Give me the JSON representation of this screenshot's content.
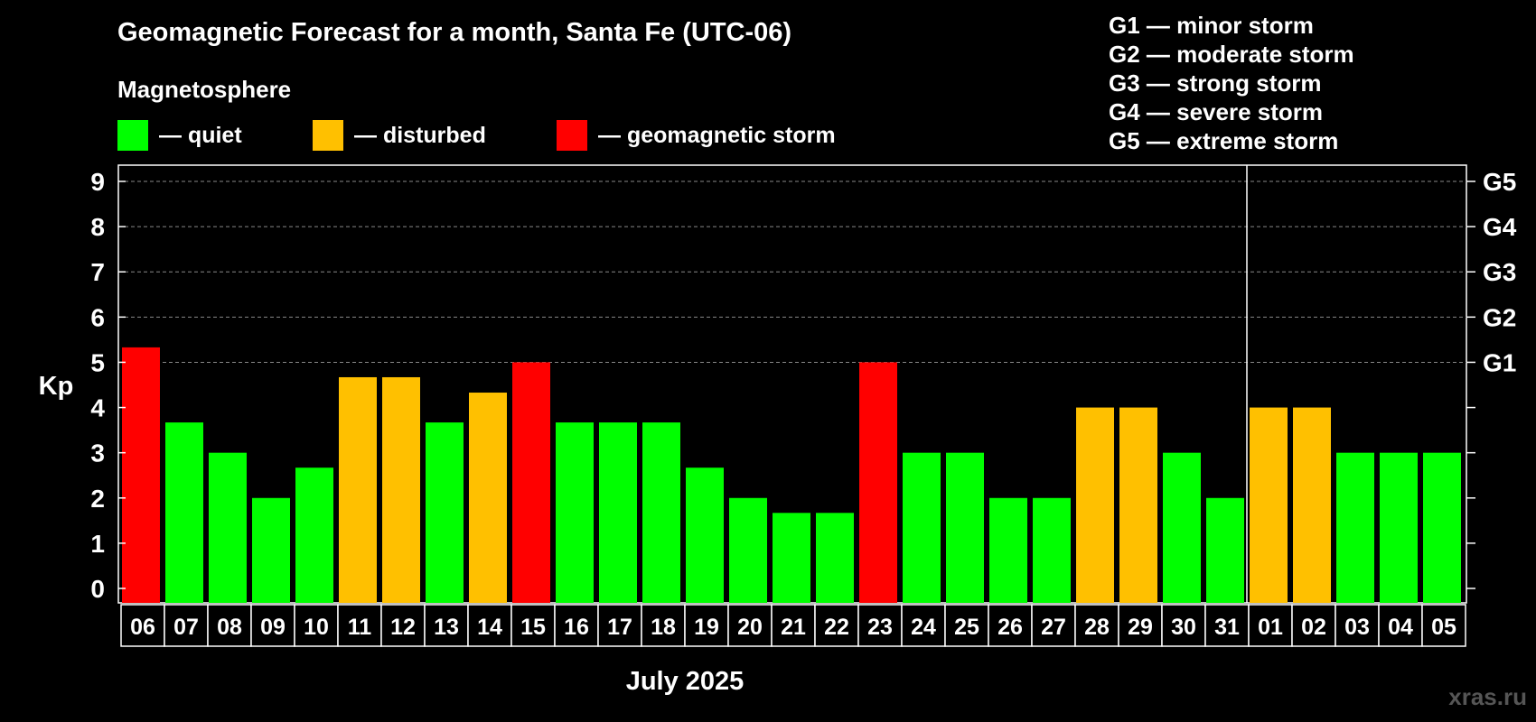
{
  "title": "Geomagnetic Forecast for a month, Santa Fe (UTC-06)",
  "legend": {
    "heading": "Magnetosphere",
    "items": [
      {
        "label": "— quiet",
        "color": "#00ff00"
      },
      {
        "label": "— disturbed",
        "color": "#ffc000"
      },
      {
        "label": "— geomagnetic storm",
        "color": "#ff0000"
      }
    ]
  },
  "storm_levels": [
    "G1 — minor storm",
    "G2 — moderate storm",
    "G3 — strong storm",
    "G4 — severe storm",
    "G5 — extreme storm"
  ],
  "watermark": "xras.ru",
  "colors": {
    "quiet": "#00ff00",
    "disturbed": "#ffc000",
    "storm": "#ff0000",
    "background": "#000000",
    "axis": "#ffffff"
  },
  "chart_data": {
    "type": "bar",
    "xlabel": "July 2025",
    "ylabel": "Kp",
    "ylim": [
      0,
      9
    ],
    "yticks": [
      "0",
      "1",
      "2",
      "3",
      "4",
      "5",
      "6",
      "7",
      "8",
      "9"
    ],
    "right_axis_labels": [
      {
        "kp": 5,
        "label": "G1"
      },
      {
        "kp": 6,
        "label": "G2"
      },
      {
        "kp": 7,
        "label": "G3"
      },
      {
        "kp": 8,
        "label": "G4"
      },
      {
        "kp": 9,
        "label": "G5"
      }
    ],
    "grid": "dashed horizontal at Kp 5 to 9",
    "month_divider_after": "31",
    "categories": [
      "06",
      "07",
      "08",
      "09",
      "10",
      "11",
      "12",
      "13",
      "14",
      "15",
      "16",
      "17",
      "18",
      "19",
      "20",
      "21",
      "22",
      "23",
      "24",
      "25",
      "26",
      "27",
      "28",
      "29",
      "30",
      "31",
      "01",
      "02",
      "03",
      "04",
      "05"
    ],
    "values": [
      5.33,
      3.67,
      3.0,
      2.0,
      2.67,
      4.67,
      4.67,
      3.67,
      4.33,
      5.0,
      3.67,
      3.67,
      3.67,
      2.67,
      2.0,
      1.67,
      1.67,
      5.0,
      3.0,
      3.0,
      2.0,
      2.0,
      4.0,
      4.0,
      3.0,
      2.0,
      4.0,
      4.0,
      3.0,
      3.0,
      3.0
    ],
    "levels": [
      "storm",
      "quiet",
      "quiet",
      "quiet",
      "quiet",
      "disturbed",
      "disturbed",
      "quiet",
      "disturbed",
      "storm",
      "quiet",
      "quiet",
      "quiet",
      "quiet",
      "quiet",
      "quiet",
      "quiet",
      "storm",
      "quiet",
      "quiet",
      "quiet",
      "quiet",
      "disturbed",
      "disturbed",
      "quiet",
      "quiet",
      "disturbed",
      "disturbed",
      "quiet",
      "quiet",
      "quiet"
    ]
  }
}
